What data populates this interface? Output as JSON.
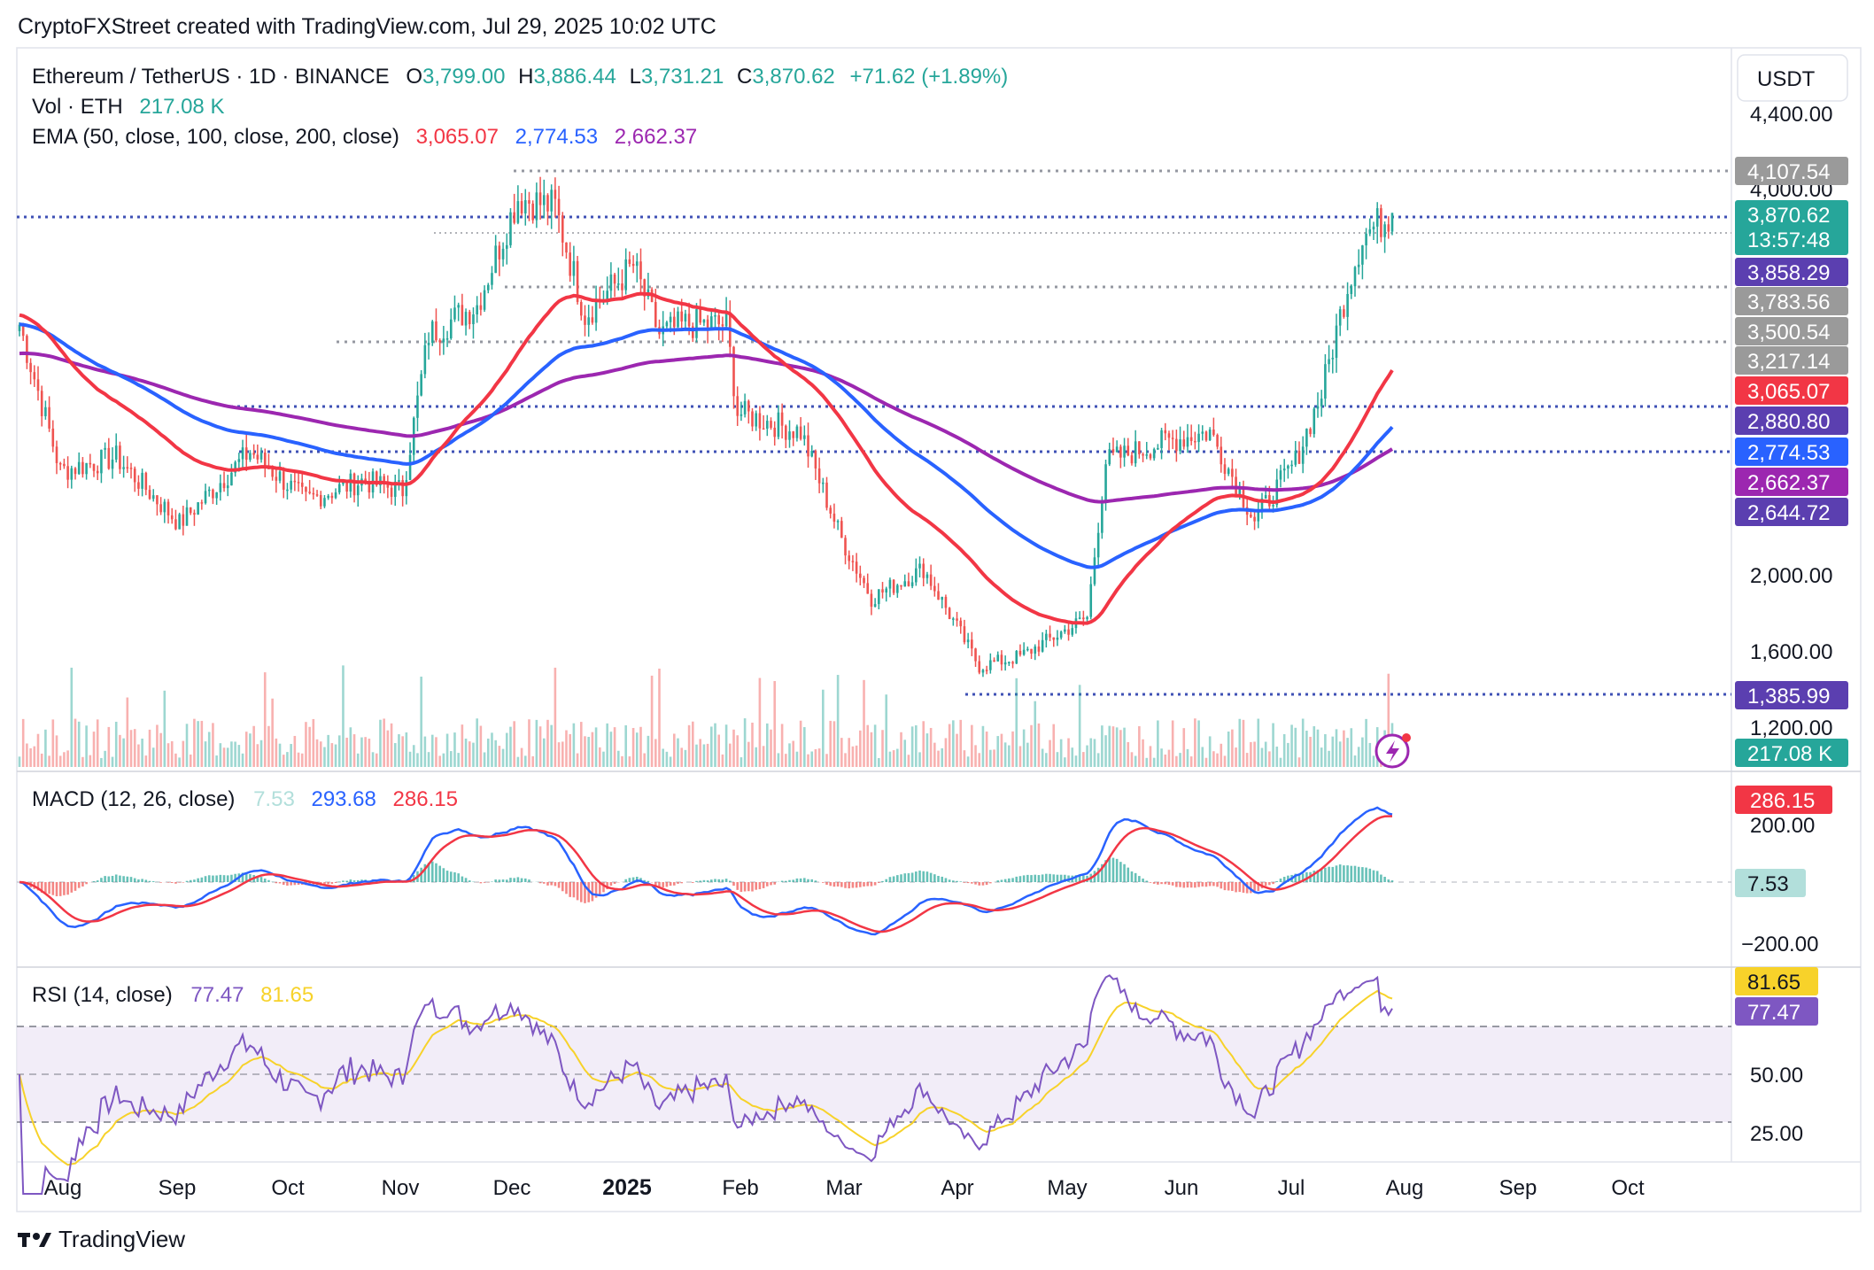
{
  "header": {
    "credit": "CryptoFXStreet created with TradingView.com, Jul 29, 2025 10:02 UTC"
  },
  "legend": {
    "symbol": "Ethereum / TetherUS · 1D · BINANCE",
    "o_label": "O",
    "o_value": "3,799.00",
    "h_label": "H",
    "h_value": "3,886.44",
    "l_label": "L",
    "l_value": "3,731.21",
    "c_label": "C",
    "c_value": "3,870.62",
    "change": "+71.62 (+1.89%)",
    "vol_label": "Vol · ETH",
    "vol_value": "217.08 K",
    "ema_label": "EMA (50, close, 100, close, 200, close)",
    "ema50": "3,065.07",
    "ema100": "2,774.53",
    "ema200": "2,662.37"
  },
  "currency_button": "USDT",
  "price_axis_ticks": [
    "4,400.00",
    "4,000.00",
    "2,000.00",
    "1,600.00",
    "1,200.00"
  ],
  "price_tags": [
    {
      "text": "4,107.54",
      "bg": "#9a9a9a"
    },
    {
      "text": "3,870.62",
      "sub": "13:57:48",
      "bg": "#26a69a"
    },
    {
      "text": "3,858.29",
      "bg": "#5b3fb0"
    },
    {
      "text": "3,783.56",
      "bg": "#9a9a9a"
    },
    {
      "text": "3,500.54",
      "bg": "#9a9a9a"
    },
    {
      "text": "3,217.14",
      "bg": "#9a9a9a"
    },
    {
      "text": "3,065.07",
      "bg": "#f23645"
    },
    {
      "text": "2,880.80",
      "bg": "#5b3fb0"
    },
    {
      "text": "2,774.53",
      "bg": "#2962ff"
    },
    {
      "text": "2,662.37",
      "bg": "#9c27b0"
    },
    {
      "text": "2,644.72",
      "bg": "#5b3fb0"
    },
    {
      "text": "1,385.99",
      "bg": "#5b3fb0"
    },
    {
      "text": "217.08 K",
      "bg": "#26a69a"
    }
  ],
  "macd": {
    "label": "MACD (12, 26, close)",
    "hist": "7.53",
    "macd": "293.68",
    "signal": "286.15",
    "ticks": [
      "200.00",
      "−200.00"
    ],
    "tags": [
      {
        "text": "286.15",
        "bg": "#f23645"
      },
      {
        "text": "7.53",
        "bg": "#b2dfdb"
      }
    ]
  },
  "rsi": {
    "label": "RSI (14, close)",
    "rsi": "77.47",
    "ma": "81.65",
    "ticks": [
      "50.00",
      "25.00"
    ],
    "tags": [
      {
        "text": "81.65",
        "bg": "#f7d22a"
      },
      {
        "text": "77.47",
        "bg": "#7e57c2"
      }
    ]
  },
  "time_axis": [
    "Aug",
    "Sep",
    "Oct",
    "Nov",
    "Dec",
    "2025",
    "Feb",
    "Mar",
    "Apr",
    "May",
    "Jun",
    "Jul",
    "Aug",
    "Sep",
    "Oct"
  ],
  "footer": {
    "brand": "TradingView"
  },
  "colors": {
    "up": "#26a69a",
    "down": "#ef5350",
    "ema50": "#f23645",
    "ema100": "#2962ff",
    "ema200": "#9c27b0",
    "macd": "#2962ff",
    "signal": "#f23645",
    "rsi": "#7e57c2",
    "rsi_ma": "#f7d22a"
  },
  "chart_data": {
    "type": "line",
    "symbol": "ETHUSDT",
    "timeframe": "1D",
    "price_series": {
      "name": "Ethereum / TetherUS",
      "x": [
        "2024-07-25",
        "2024-08-05",
        "2024-08-20",
        "2024-09-06",
        "2024-09-25",
        "2024-10-10",
        "2024-10-25",
        "2024-11-05",
        "2024-11-12",
        "2024-11-25",
        "2024-12-06",
        "2024-12-16",
        "2024-12-24",
        "2025-01-06",
        "2025-01-13",
        "2025-01-20",
        "2025-01-31",
        "2025-02-03",
        "2025-02-20",
        "2025-03-03",
        "2025-03-11",
        "2025-03-25",
        "2025-04-09",
        "2025-04-20",
        "2025-05-08",
        "2025-05-13",
        "2025-05-29",
        "2025-06-10",
        "2025-06-22",
        "2025-07-03",
        "2025-07-10",
        "2025-07-17",
        "2025-07-21",
        "2025-07-29"
      ],
      "close": [
        3300,
        2550,
        2620,
        2280,
        2650,
        2400,
        2500,
        2450,
        3250,
        3400,
        3950,
        3900,
        3350,
        3600,
        3250,
        3300,
        3300,
        2850,
        2750,
        2200,
        1900,
        2050,
        1550,
        1600,
        1800,
        2600,
        2700,
        2750,
        2300,
        2600,
        2950,
        3500,
        3750,
        3870.62
      ]
    },
    "ema50_end": 3065.07,
    "ema100_end": 2774.53,
    "ema200_end": 2662.37,
    "volume_end": "217.08 K",
    "levels": [
      4107.54,
      3858.29,
      3783.56,
      3500.54,
      3217.14,
      2880.8,
      2644.72,
      1385.99
    ],
    "macd_end": {
      "macd": 293.68,
      "signal": 286.15,
      "hist": 7.53
    },
    "rsi_end": {
      "rsi": 77.47,
      "ma": 81.65
    },
    "rsi_bands": [
      30,
      50,
      70
    ],
    "ylim": [
      1200,
      4400
    ],
    "grid": false
  }
}
